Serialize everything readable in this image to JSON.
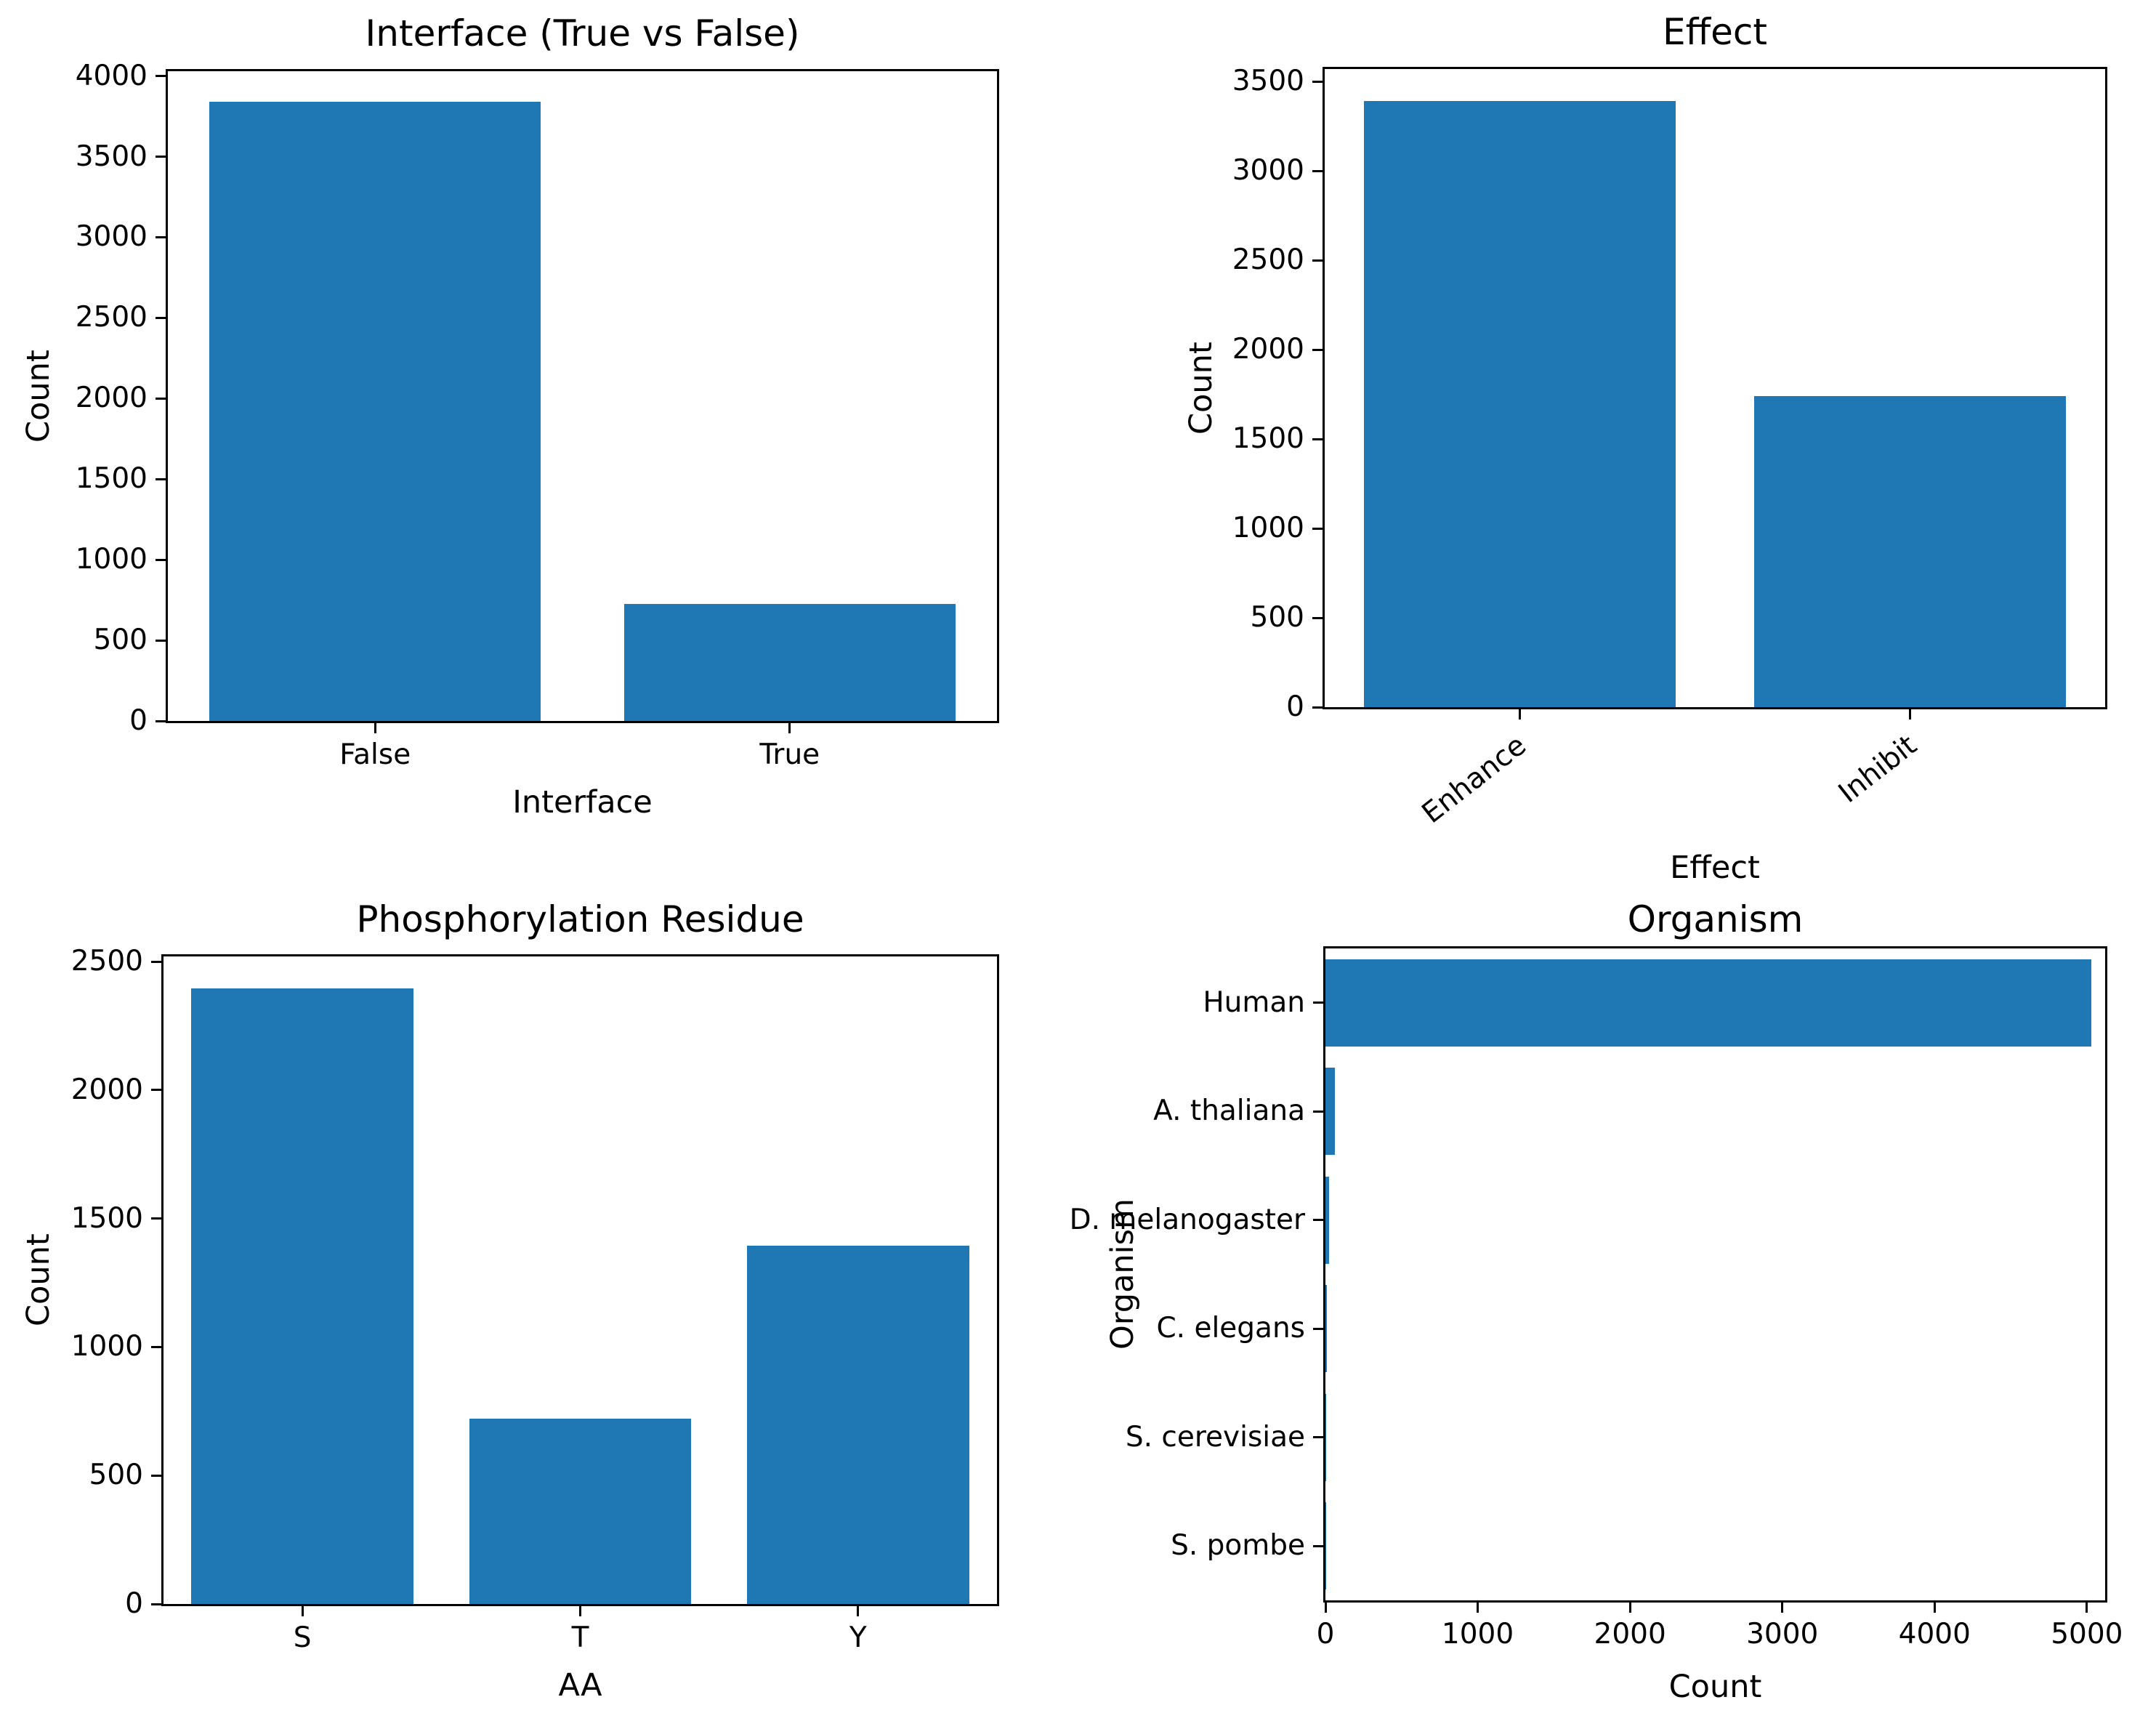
{
  "figure": {
    "background": "#ffffff",
    "bar_color": "#1f77b4",
    "text_color": "#000000"
  },
  "chart_data": [
    {
      "type": "bar",
      "title": "Interface (True vs False)",
      "xlabel": "Interface",
      "ylabel": "Count",
      "categories": [
        "False",
        "True"
      ],
      "values": [
        3840,
        725
      ],
      "ylim": [
        0,
        4030
      ],
      "yticks": [
        0,
        500,
        1000,
        1500,
        2000,
        2500,
        3000,
        3500,
        4000
      ],
      "grid": false,
      "xtick_rotation": 0,
      "legend": "none"
    },
    {
      "type": "bar",
      "title": "Effect",
      "xlabel": "Effect",
      "ylabel": "Count",
      "categories": [
        "Enhance",
        "Inhibit"
      ],
      "values": [
        3390,
        1740
      ],
      "ylim": [
        0,
        3570
      ],
      "yticks": [
        0,
        500,
        1000,
        1500,
        2000,
        2500,
        3000,
        3500
      ],
      "grid": false,
      "xtick_rotation": 38,
      "legend": "none"
    },
    {
      "type": "bar",
      "title": "Phosphorylation Residue",
      "xlabel": "AA",
      "ylabel": "Count",
      "categories": [
        "S",
        "T",
        "Y"
      ],
      "values": [
        2395,
        720,
        1395
      ],
      "ylim": [
        0,
        2520
      ],
      "yticks": [
        0,
        500,
        1000,
        1500,
        2000,
        2500
      ],
      "grid": false,
      "xtick_rotation": 0,
      "legend": "none"
    },
    {
      "type": "barh",
      "title": "Organism",
      "xlabel": "Count",
      "ylabel": "Organism",
      "categories": [
        "Human",
        "A. thaliana",
        "D. melanogaster",
        "C. elegans",
        "S. cerevisiae",
        "S. pombe"
      ],
      "values": [
        5030,
        62,
        25,
        8,
        4,
        2
      ],
      "xlim": [
        0,
        5120
      ],
      "xticks": [
        0,
        1000,
        2000,
        3000,
        4000,
        5000
      ],
      "grid": false,
      "legend": "none"
    }
  ]
}
